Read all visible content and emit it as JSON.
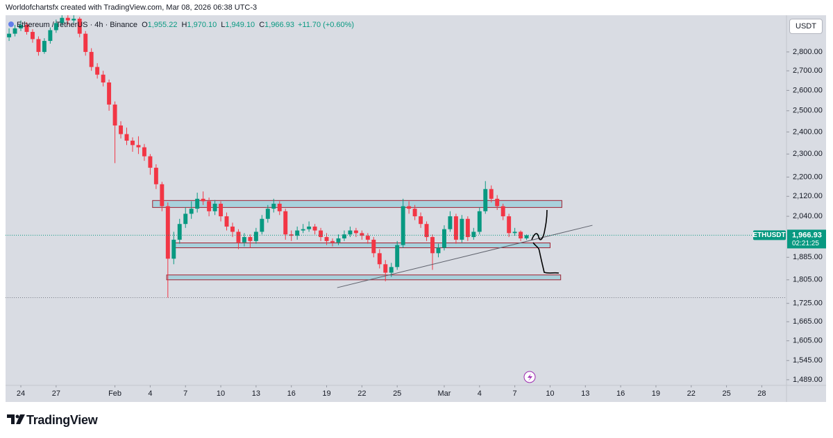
{
  "header": {
    "attribution": "Worldofchartsfx created with TradingView.com, Mar 08, 2026 06:38 UTC-3"
  },
  "chart_data": {
    "type": "candlestick",
    "symbol": "Ethereum / TetherUS · 4h · Binance",
    "legend": [
      {
        "key": "O",
        "value": "1,955.22"
      },
      {
        "key": "H",
        "value": "1,970.10"
      },
      {
        "key": "L",
        "value": "1,949.10"
      },
      {
        "key": "C",
        "value": "1,966.93"
      }
    ],
    "change": "+11.70 (+0.60%)",
    "currency": "USDT",
    "up_color": "#089981",
    "down_color": "#f23645",
    "log_scale": true,
    "grid": false,
    "xlim": [
      -1.3,
      65.1
    ],
    "xticks": [
      {
        "value": 0,
        "label": "24"
      },
      {
        "value": 3,
        "label": "27"
      },
      {
        "value": 8,
        "label": "Feb"
      },
      {
        "value": 11,
        "label": "4"
      },
      {
        "value": 14,
        "label": "7"
      },
      {
        "value": 17,
        "label": "10"
      },
      {
        "value": 20,
        "label": "13"
      },
      {
        "value": 23,
        "label": "16"
      },
      {
        "value": 26,
        "label": "19"
      },
      {
        "value": 29,
        "label": "22"
      },
      {
        "value": 32,
        "label": "25"
      },
      {
        "value": 36,
        "label": "Mar"
      },
      {
        "value": 39,
        "label": "4"
      },
      {
        "value": 42,
        "label": "7"
      },
      {
        "value": 45,
        "label": "10"
      },
      {
        "value": 48,
        "label": "13"
      },
      {
        "value": 51,
        "label": "16"
      },
      {
        "value": 54,
        "label": "19"
      },
      {
        "value": 57,
        "label": "22"
      },
      {
        "value": 60,
        "label": "25"
      },
      {
        "value": 63,
        "label": "28"
      }
    ],
    "ylim": [
      1473,
      3005
    ],
    "yticks": [
      {
        "value": 2800,
        "label": "2,800.00"
      },
      {
        "value": 2700,
        "label": "2,700.00"
      },
      {
        "value": 2600,
        "label": "2,600.00"
      },
      {
        "value": 2500,
        "label": "2,500.00"
      },
      {
        "value": 2400,
        "label": "2,400.00"
      },
      {
        "value": 2300,
        "label": "2,300.00"
      },
      {
        "value": 2200,
        "label": "2,200.00"
      },
      {
        "value": 2120,
        "label": "2,120.00"
      },
      {
        "value": 2040,
        "label": "2,040.00"
      },
      {
        "value": 1885,
        "label": "1,885.00"
      },
      {
        "value": 1805,
        "label": "1,805.00"
      },
      {
        "value": 1725,
        "label": "1,725.00"
      },
      {
        "value": 1665,
        "label": "1,665.00"
      },
      {
        "value": 1605,
        "label": "1,605.00"
      },
      {
        "value": 1545,
        "label": "1,545.00"
      },
      {
        "value": 1489,
        "label": "1,489.00"
      }
    ],
    "x": [
      -1,
      -0.5,
      0,
      0.5,
      1,
      1.5,
      2,
      2.5,
      3,
      3.5,
      4,
      4.5,
      5,
      5.5,
      6,
      6.5,
      7,
      7.5,
      8,
      8.5,
      9,
      9.5,
      10,
      10.5,
      11,
      11.5,
      12,
      12.5,
      13,
      13.5,
      14,
      14.5,
      15,
      15.5,
      16,
      16.5,
      17,
      17.5,
      18,
      18.5,
      19,
      19.5,
      20,
      20.5,
      21,
      21.5,
      22,
      22.5,
      23,
      23.5,
      24,
      24.5,
      25,
      25.5,
      26,
      26.5,
      27,
      27.5,
      28,
      28.5,
      29,
      29.5,
      30,
      30.5,
      31,
      31.5,
      32,
      32.5,
      33,
      33.5,
      34,
      34.5,
      35,
      35.5,
      36,
      36.5,
      37,
      37.5,
      38,
      38.5,
      39,
      39.5,
      40,
      40.5,
      41,
      41.5,
      42,
      42.5,
      43
    ],
    "ohlc": [
      [
        2880,
        2930,
        2860,
        2900
      ],
      [
        2900,
        2950,
        2885,
        2930
      ],
      [
        2930,
        2975,
        2915,
        2950
      ],
      [
        2950,
        2965,
        2895,
        2910
      ],
      [
        2910,
        2925,
        2850,
        2870
      ],
      [
        2870,
        2885,
        2780,
        2800
      ],
      [
        2800,
        2875,
        2790,
        2860
      ],
      [
        2860,
        2935,
        2845,
        2920
      ],
      [
        2920,
        2980,
        2905,
        2960
      ],
      [
        2960,
        3005,
        2945,
        2990
      ],
      [
        2990,
        3005,
        2950,
        2975
      ],
      [
        2975,
        3005,
        2960,
        2985
      ],
      [
        2985,
        2995,
        2880,
        2900
      ],
      [
        2900,
        2915,
        2780,
        2800
      ],
      [
        2800,
        2820,
        2700,
        2720
      ],
      [
        2720,
        2740,
        2660,
        2680
      ],
      [
        2680,
        2700,
        2620,
        2640
      ],
      [
        2640,
        2655,
        2500,
        2530
      ],
      [
        2530,
        2545,
        2260,
        2430
      ],
      [
        2430,
        2450,
        2370,
        2390
      ],
      [
        2390,
        2420,
        2340,
        2360
      ],
      [
        2360,
        2375,
        2310,
        2340
      ],
      [
        2340,
        2380,
        2300,
        2330
      ],
      [
        2330,
        2345,
        2270,
        2290
      ],
      [
        2290,
        2300,
        2210,
        2240
      ],
      [
        2240,
        2255,
        2150,
        2170
      ],
      [
        2170,
        2180,
        2060,
        2080
      ],
      [
        2080,
        2095,
        1744,
        1880
      ],
      [
        1880,
        1980,
        1860,
        1950
      ],
      [
        1950,
        2030,
        1935,
        2010
      ],
      [
        2010,
        2075,
        1995,
        2050
      ],
      [
        2050,
        2100,
        2030,
        2070
      ],
      [
        2070,
        2135,
        2055,
        2110
      ],
      [
        2110,
        2140,
        2085,
        2100
      ],
      [
        2100,
        2115,
        2040,
        2060
      ],
      [
        2060,
        2105,
        2045,
        2090
      ],
      [
        2090,
        2100,
        2020,
        2040
      ],
      [
        2040,
        2055,
        1985,
        2000
      ],
      [
        2000,
        2015,
        1960,
        1980
      ],
      [
        1980,
        1990,
        1915,
        1940
      ],
      [
        1940,
        1975,
        1925,
        1960
      ],
      [
        1960,
        1970,
        1920,
        1945
      ],
      [
        1945,
        1995,
        1935,
        1980
      ],
      [
        1980,
        2045,
        1970,
        2030
      ],
      [
        2030,
        2085,
        2015,
        2070
      ],
      [
        2070,
        2110,
        2055,
        2090
      ],
      [
        2090,
        2100,
        2045,
        2060
      ],
      [
        2060,
        2070,
        1950,
        1970
      ],
      [
        1970,
        1985,
        1945,
        1965
      ],
      [
        1965,
        2000,
        1950,
        1985
      ],
      [
        1985,
        2010,
        1975,
        1990
      ],
      [
        1990,
        2020,
        1980,
        2000
      ],
      [
        2000,
        2010,
        1970,
        1985
      ],
      [
        1985,
        1995,
        1945,
        1960
      ],
      [
        1960,
        1975,
        1930,
        1945
      ],
      [
        1945,
        1955,
        1925,
        1940
      ],
      [
        1940,
        1970,
        1930,
        1955
      ],
      [
        1955,
        1985,
        1945,
        1970
      ],
      [
        1970,
        2000,
        1960,
        1985
      ],
      [
        1985,
        1995,
        1960,
        1975
      ],
      [
        1975,
        1985,
        1950,
        1965
      ],
      [
        1965,
        1975,
        1935,
        1950
      ],
      [
        1950,
        1960,
        1885,
        1900
      ],
      [
        1900,
        1915,
        1845,
        1860
      ],
      [
        1860,
        1875,
        1800,
        1830
      ],
      [
        1830,
        1865,
        1815,
        1850
      ],
      [
        1850,
        1945,
        1840,
        1930
      ],
      [
        1930,
        2110,
        1920,
        2080
      ],
      [
        2080,
        2100,
        2050,
        2070
      ],
      [
        2070,
        2085,
        2025,
        2040
      ],
      [
        2040,
        2055,
        1995,
        2010
      ],
      [
        2010,
        2020,
        1945,
        1960
      ],
      [
        1960,
        1970,
        1840,
        1900
      ],
      [
        1900,
        1935,
        1885,
        1920
      ],
      [
        1920,
        2005,
        1910,
        1990
      ],
      [
        1990,
        2060,
        1980,
        2040
      ],
      [
        2040,
        2050,
        1935,
        1950
      ],
      [
        1950,
        2045,
        1940,
        2030
      ],
      [
        2030,
        2040,
        1945,
        1960
      ],
      [
        1960,
        1995,
        1950,
        1980
      ],
      [
        1980,
        2075,
        1970,
        2060
      ],
      [
        2060,
        2183,
        2050,
        2150
      ],
      [
        2150,
        2165,
        2095,
        2110
      ],
      [
        2110,
        2125,
        2065,
        2080
      ],
      [
        2080,
        2090,
        2025,
        2040
      ],
      [
        2040,
        2050,
        1960,
        1975
      ],
      [
        1975,
        1995,
        1965,
        1980
      ],
      [
        1980,
        1985,
        1945,
        1955
      ],
      [
        1955.22,
        1970.1,
        1949.1,
        1966.93
      ]
    ],
    "last_price": {
      "value": 1966.93,
      "label": "1,966.93",
      "ticker": "ETHUSDT",
      "countdown": "02:21:25"
    },
    "price_lines": [
      1744
    ],
    "zones": [
      {
        "x": [
          11.2,
          46.0
        ],
        "y": [
          2075,
          2103
        ]
      },
      {
        "x": [
          13.1,
          45.0
        ],
        "y": [
          1920,
          1938
        ]
      },
      {
        "x": [
          12.4,
          45.9
        ],
        "y": [
          1805,
          1822
        ]
      }
    ],
    "trendline": {
      "x": [
        26.9,
        48.6
      ],
      "y": [
        1778,
        2005
      ]
    }
  },
  "footer": {
    "brand": "TradingView"
  }
}
